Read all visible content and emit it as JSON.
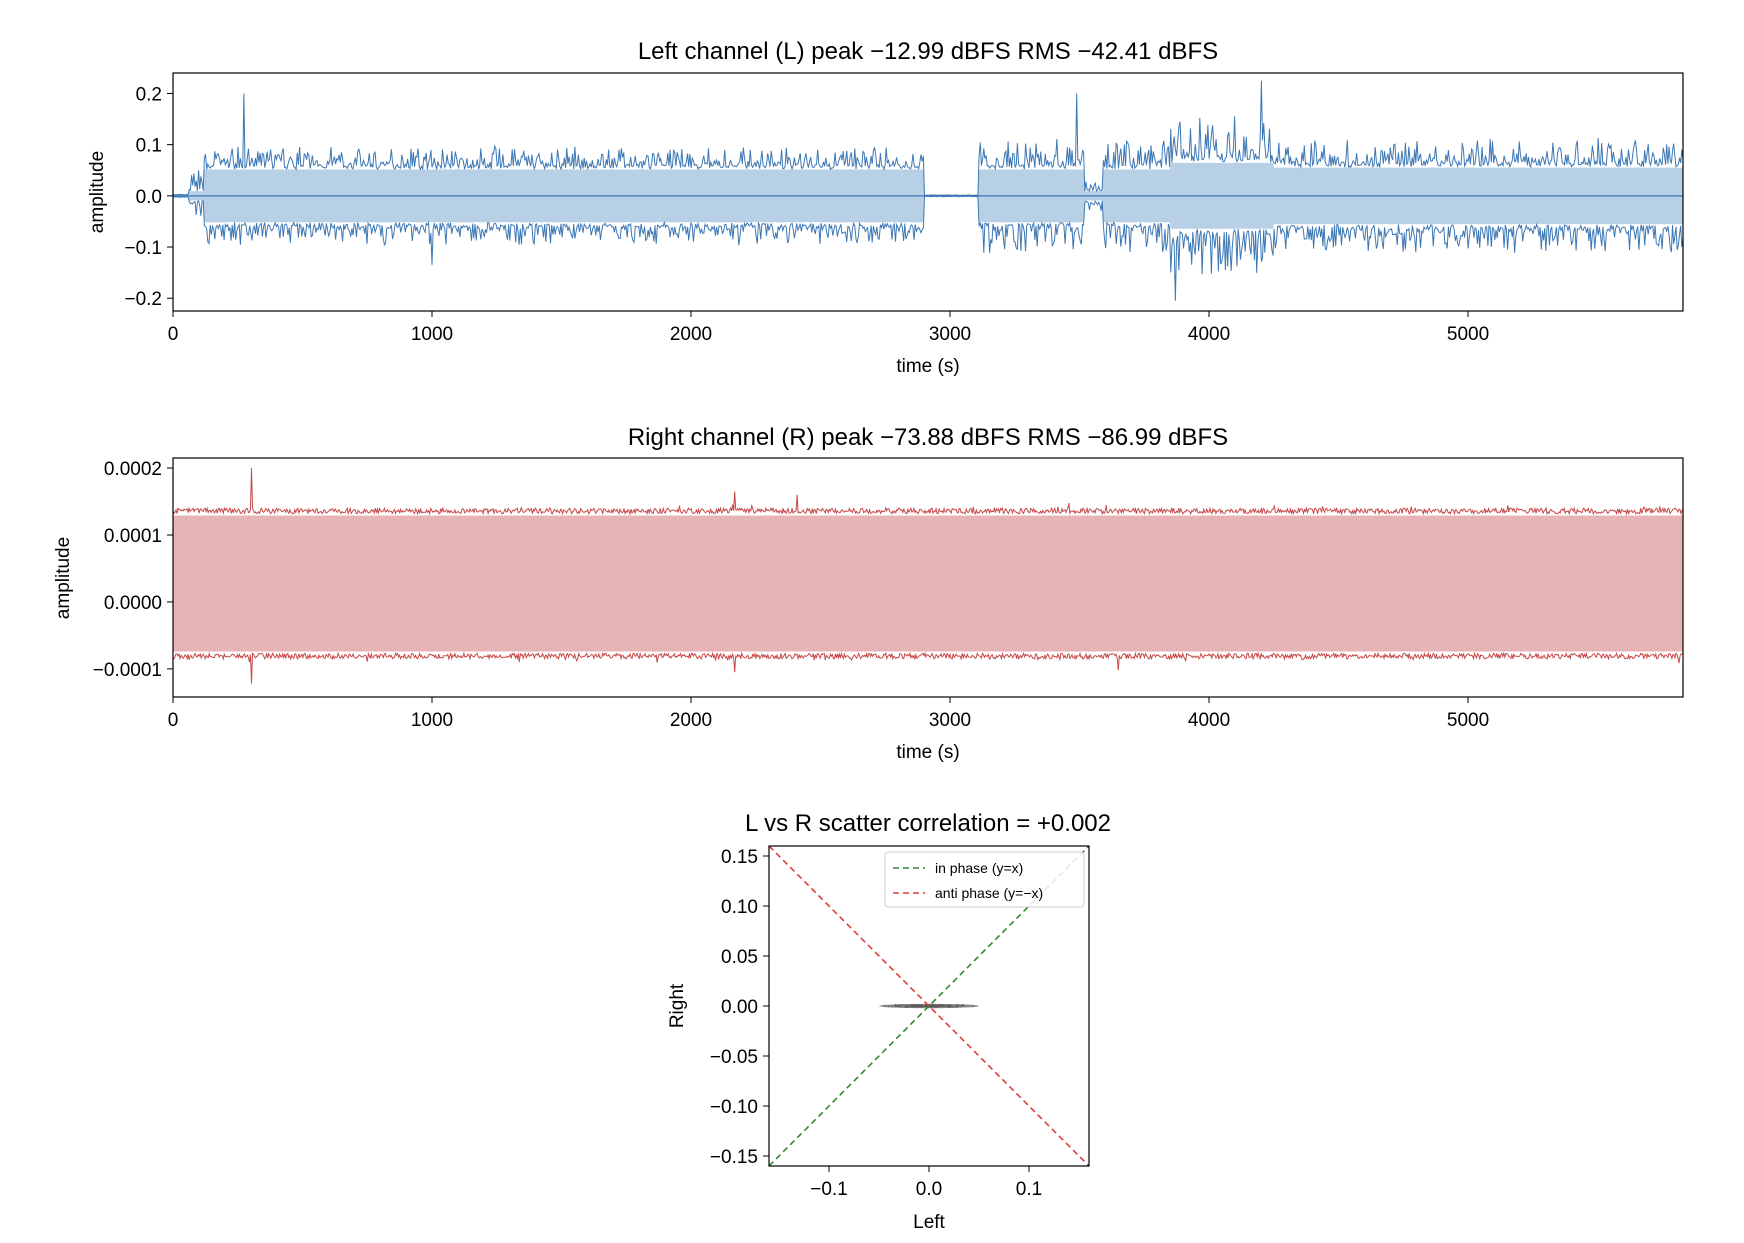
{
  "chart_data": [
    {
      "type": "line",
      "title": "Left channel (L)   peak −12.99 dBFS   RMS −42.41 dBFS",
      "xlabel": "time (s)",
      "ylabel": "amplitude",
      "xlim": [
        0,
        5830
      ],
      "ylim": [
        -0.225,
        0.24
      ],
      "xticks": [
        0,
        1000,
        2000,
        3000,
        4000,
        5000
      ],
      "xtick_labels": [
        "0",
        "1000",
        "2000",
        "3000",
        "4000",
        "5000"
      ],
      "yticks": [
        0.2,
        0.1,
        0.0,
        -0.1,
        -0.2
      ],
      "ytick_labels": [
        "0.2",
        "0.1",
        "0.0",
        "−0.1",
        "−0.2"
      ],
      "color": "#3d78b5",
      "fill_color": "#b7d0e6",
      "envelope": {
        "segments": [
          {
            "x": [
              0,
              60
            ],
            "core": 0.002,
            "peak": 0.003
          },
          {
            "x": [
              60,
              120
            ],
            "core": 0.01,
            "peak": 0.05
          },
          {
            "x": [
              120,
              2900
            ],
            "core": 0.056,
            "peak": 0.095
          },
          {
            "x": [
              2900,
              3110
            ],
            "core": 0.001,
            "peak": 0.002
          },
          {
            "x": [
              3110,
              3520
            ],
            "core": 0.056,
            "peak": 0.11
          },
          {
            "x": [
              3520,
              3590
            ],
            "core": 0.01,
            "peak": 0.03
          },
          {
            "x": [
              3590,
              3850
            ],
            "core": 0.056,
            "peak": 0.11
          },
          {
            "x": [
              3850,
              4250
            ],
            "core": 0.07,
            "peak": 0.16
          },
          {
            "x": [
              4250,
              5830
            ],
            "core": 0.06,
            "peak": 0.11
          }
        ],
        "spikes": [
          {
            "x": 275,
            "y": 0.2
          },
          {
            "x": 1000,
            "y": -0.135
          },
          {
            "x": 3490,
            "y": 0.2
          },
          {
            "x": 3870,
            "y": -0.205
          },
          {
            "x": 4200,
            "y": 0.225
          }
        ]
      }
    },
    {
      "type": "line",
      "title": "Right channel (R)   peak −73.88 dBFS   RMS −86.99 dBFS",
      "xlabel": "time (s)",
      "ylabel": "amplitude",
      "xlim": [
        0,
        5830
      ],
      "ylim": [
        -0.000142,
        0.000215
      ],
      "xticks": [
        0,
        1000,
        2000,
        3000,
        4000,
        5000
      ],
      "xtick_labels": [
        "0",
        "1000",
        "2000",
        "3000",
        "4000",
        "5000"
      ],
      "yticks": [
        0.0002,
        0.0001,
        0.0,
        -0.0001
      ],
      "ytick_labels": [
        "0.0002",
        "0.0001",
        "0.0000",
        "−0.0001"
      ],
      "color": "#c84848",
      "fill_color": "#e6b4b4",
      "envelope": {
        "upper_core": 0.000135,
        "lower_core": -8e-05,
        "jitter": 6e-06,
        "spikes": [
          {
            "x": 305,
            "y": 0.0002
          },
          {
            "x": 305,
            "y": -0.000122
          },
          {
            "x": 2170,
            "y": 0.000165
          },
          {
            "x": 2170,
            "y": -0.000105
          },
          {
            "x": 2410,
            "y": 0.00016
          },
          {
            "x": 3650,
            "y": -0.000102
          }
        ]
      }
    },
    {
      "type": "scatter",
      "title": "L vs R scatter   correlation = +0.002",
      "xlabel": "Left",
      "ylabel": "Right",
      "xlim": [
        -0.16,
        0.16
      ],
      "ylim": [
        -0.16,
        0.16
      ],
      "xticks": [
        -0.1,
        0.0,
        0.1
      ],
      "xtick_labels": [
        "−0.1",
        "0.0",
        "0.1"
      ],
      "yticks": [
        0.15,
        0.1,
        0.05,
        0.0,
        -0.05,
        -0.1,
        -0.15
      ],
      "ytick_labels": [
        "0.15",
        "0.10",
        "0.05",
        "0.00",
        "−0.05",
        "−0.10",
        "−0.15"
      ],
      "series": [
        {
          "name": "in phase (y=x)",
          "color": "#2e8b2e",
          "dash": "dashed",
          "x": [
            -0.16,
            0.16
          ],
          "y": [
            -0.16,
            0.16
          ]
        },
        {
          "name": "anti phase (y=−x)",
          "color": "#e03c3c",
          "dash": "dashed",
          "x": [
            -0.16,
            0.16
          ],
          "y": [
            0.16,
            -0.16
          ]
        }
      ],
      "points": {
        "color": "#555555",
        "x_range": [
          -0.095,
          0.09
        ],
        "y_range": [
          -0.0001,
          0.0002
        ]
      },
      "legend": "top-right"
    }
  ]
}
